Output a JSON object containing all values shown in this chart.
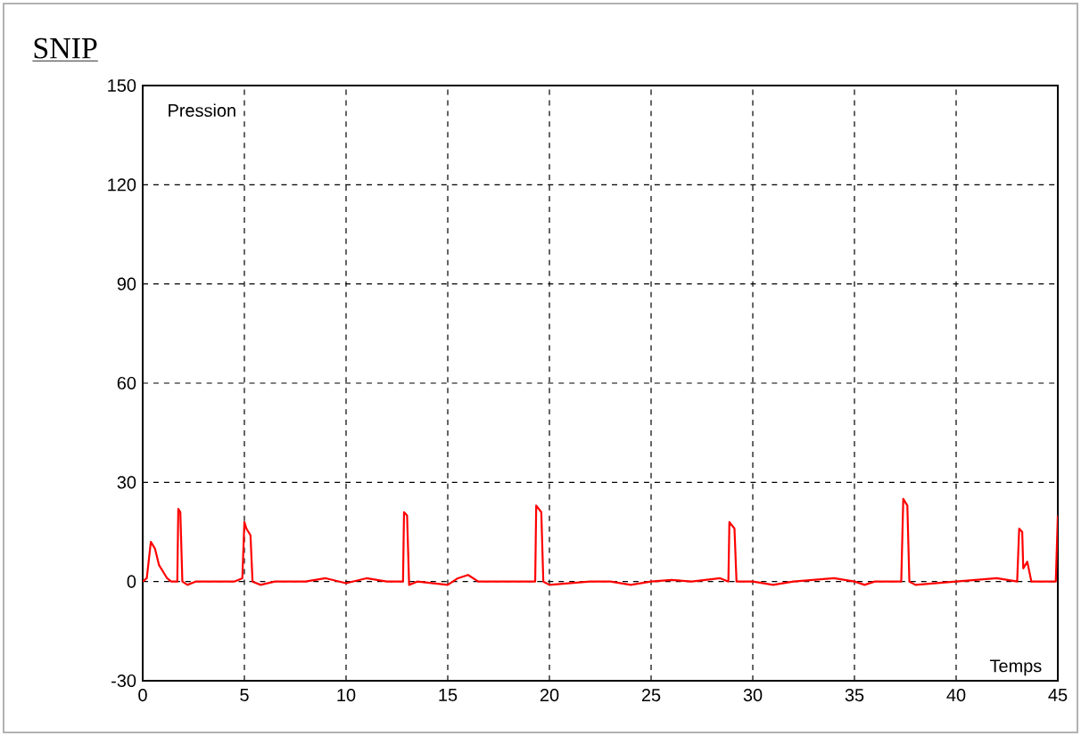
{
  "chart_data": {
    "type": "line",
    "title": "SNIP",
    "xlabel": "Temps",
    "ylabel": "Pression",
    "xlim": [
      0,
      45
    ],
    "ylim": [
      -30,
      150
    ],
    "xticks": [
      0,
      5,
      10,
      15,
      20,
      25,
      30,
      35,
      40,
      45
    ],
    "yticks": [
      -30,
      0,
      30,
      60,
      90,
      120,
      150
    ],
    "grid": true,
    "line_style": "solid",
    "marker": "none",
    "series": [
      {
        "color": "#ff0000",
        "x": [
          0,
          0.2,
          0.4,
          0.6,
          0.8,
          1.0,
          1.2,
          1.4,
          1.7,
          1.75,
          1.85,
          1.95,
          2.2,
          2.6,
          3.5,
          4.5,
          4.9,
          5.0,
          5.1,
          5.2,
          5.3,
          5.4,
          5.8,
          6.5,
          8,
          9,
          10,
          11,
          12,
          12.8,
          12.85,
          13.0,
          13.1,
          13.5,
          15,
          15.5,
          16,
          16.5,
          17,
          19,
          19.3,
          19.35,
          19.6,
          19.7,
          20,
          22,
          23,
          24,
          25,
          26,
          27,
          28.4,
          28.8,
          28.85,
          29.1,
          29.2,
          30,
          31,
          32,
          34,
          35,
          35.5,
          36,
          37.3,
          37.4,
          37.6,
          37.7,
          38,
          40,
          42,
          43,
          43.1,
          43.25,
          43.3,
          43.5,
          43.7,
          44.9,
          45
        ],
        "values": [
          0,
          1,
          12,
          10,
          5,
          3,
          1,
          0,
          0,
          22,
          21,
          0,
          -1,
          0,
          0,
          0,
          1,
          18,
          16,
          15,
          14,
          0,
          -1,
          0,
          0,
          1,
          -0.5,
          1,
          0,
          0,
          21,
          20,
          -1,
          0,
          -1,
          1,
          2,
          0,
          0,
          0,
          0,
          23,
          21,
          0,
          -1,
          0,
          0,
          -1,
          0,
          0.5,
          0,
          1,
          0,
          18,
          16,
          0,
          0,
          -1,
          0,
          1,
          0,
          -1,
          0,
          0,
          25,
          23,
          0,
          -1,
          0,
          1,
          0,
          16,
          15,
          4,
          6,
          0,
          0,
          20
        ]
      }
    ]
  }
}
